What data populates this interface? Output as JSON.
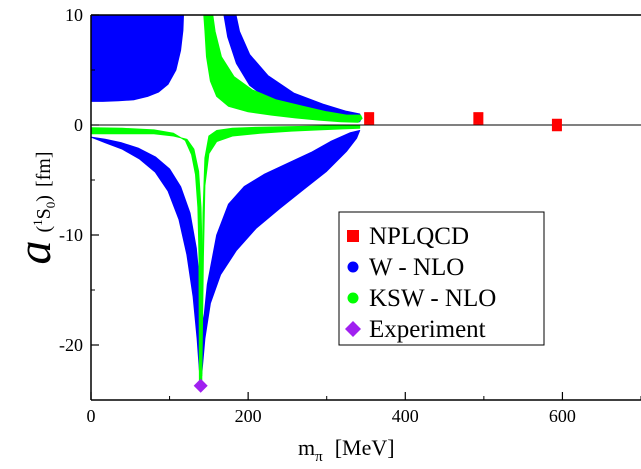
{
  "chart_data": {
    "type": "scatter",
    "xlim": [
      0,
      700
    ],
    "ylim": [
      -25,
      10
    ],
    "x_ticks": [
      "0",
      "200",
      "400",
      "600"
    ],
    "y_ticks": [
      "10",
      "0",
      "-10",
      "-20"
    ],
    "xlabel_main": "m",
    "xlabel_sub": "π",
    "xlabel_unit": "[MeV]",
    "ylabel_symbol": "a",
    "ylabel_open": "(",
    "ylabel_sup": "1",
    "ylabel_s": "S",
    "ylabel_sub": "0",
    "ylabel_close": ")",
    "ylabel_unit": "[fm]",
    "legend_position": "lower-right",
    "series": [
      {
        "name": "NPLQCD",
        "marker": "square",
        "color": "#ff0000",
        "points": [
          {
            "x": 354,
            "y": 0.6,
            "yerr": 0.5
          },
          {
            "x": 493,
            "y": 0.6,
            "yerr": 0.5
          },
          {
            "x": 593,
            "y": 0.0,
            "yerr": 0.5
          }
        ]
      },
      {
        "name": "W - NLO",
        "marker": "circle",
        "color": "#0000ff",
        "band": true
      },
      {
        "name": "KSW - NLO",
        "marker": "circle",
        "color": "#00ff00",
        "band": true
      },
      {
        "name": "Experiment",
        "marker": "diamond",
        "color": "#a020f0",
        "points": [
          {
            "x": 139.6,
            "y": -23.7
          }
        ]
      }
    ]
  }
}
